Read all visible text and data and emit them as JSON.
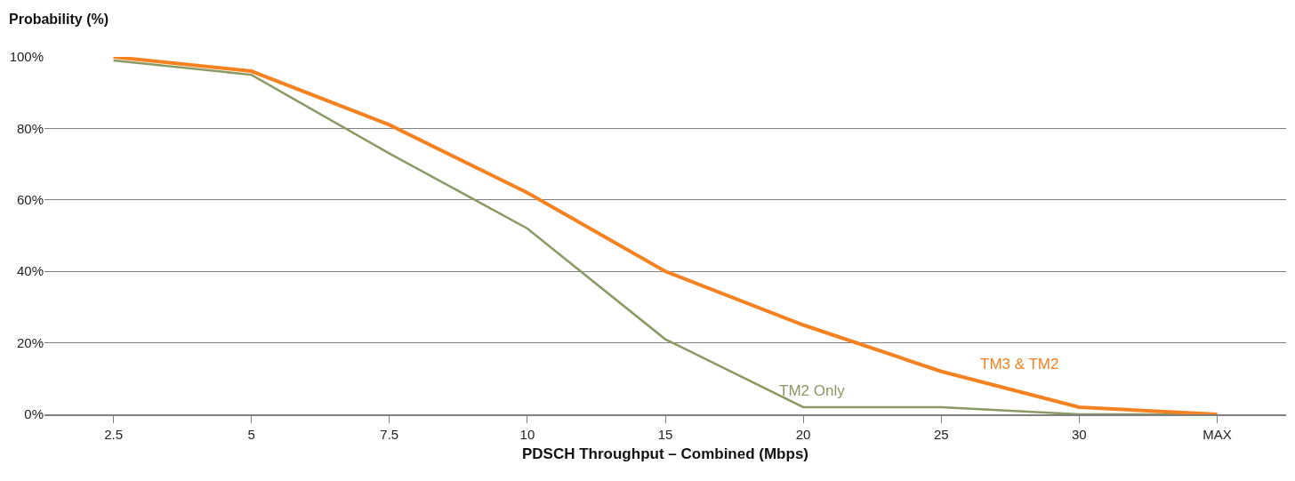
{
  "chart_data": {
    "type": "line",
    "xlabel": "PDSCH Throughput – Combined (Mbps)",
    "ylabel": "Probability (%)",
    "categories": [
      "2.5",
      "5",
      "7.5",
      "10",
      "15",
      "20",
      "25",
      "30",
      "MAX"
    ],
    "series": [
      {
        "name": "TM2 Only",
        "color": "#8a9a65",
        "values": [
          99,
          95,
          73,
          52,
          21,
          2,
          2,
          0,
          0
        ]
      },
      {
        "name": "TM3 & TM2",
        "color": "#f58220",
        "values": [
          100,
          96,
          81,
          62,
          40,
          25,
          12,
          2,
          0
        ]
      }
    ],
    "ylim": [
      0,
      100
    ],
    "yticks": [
      {
        "value": 0,
        "label": "0%"
      },
      {
        "value": 20,
        "label": "20%"
      },
      {
        "value": 40,
        "label": "40%"
      },
      {
        "value": 60,
        "label": "60%"
      },
      {
        "value": 80,
        "label": "80%"
      },
      {
        "value": 100,
        "label": "100%"
      }
    ],
    "grid": "y",
    "legend": false,
    "marker": "none",
    "line_style": "solid"
  }
}
